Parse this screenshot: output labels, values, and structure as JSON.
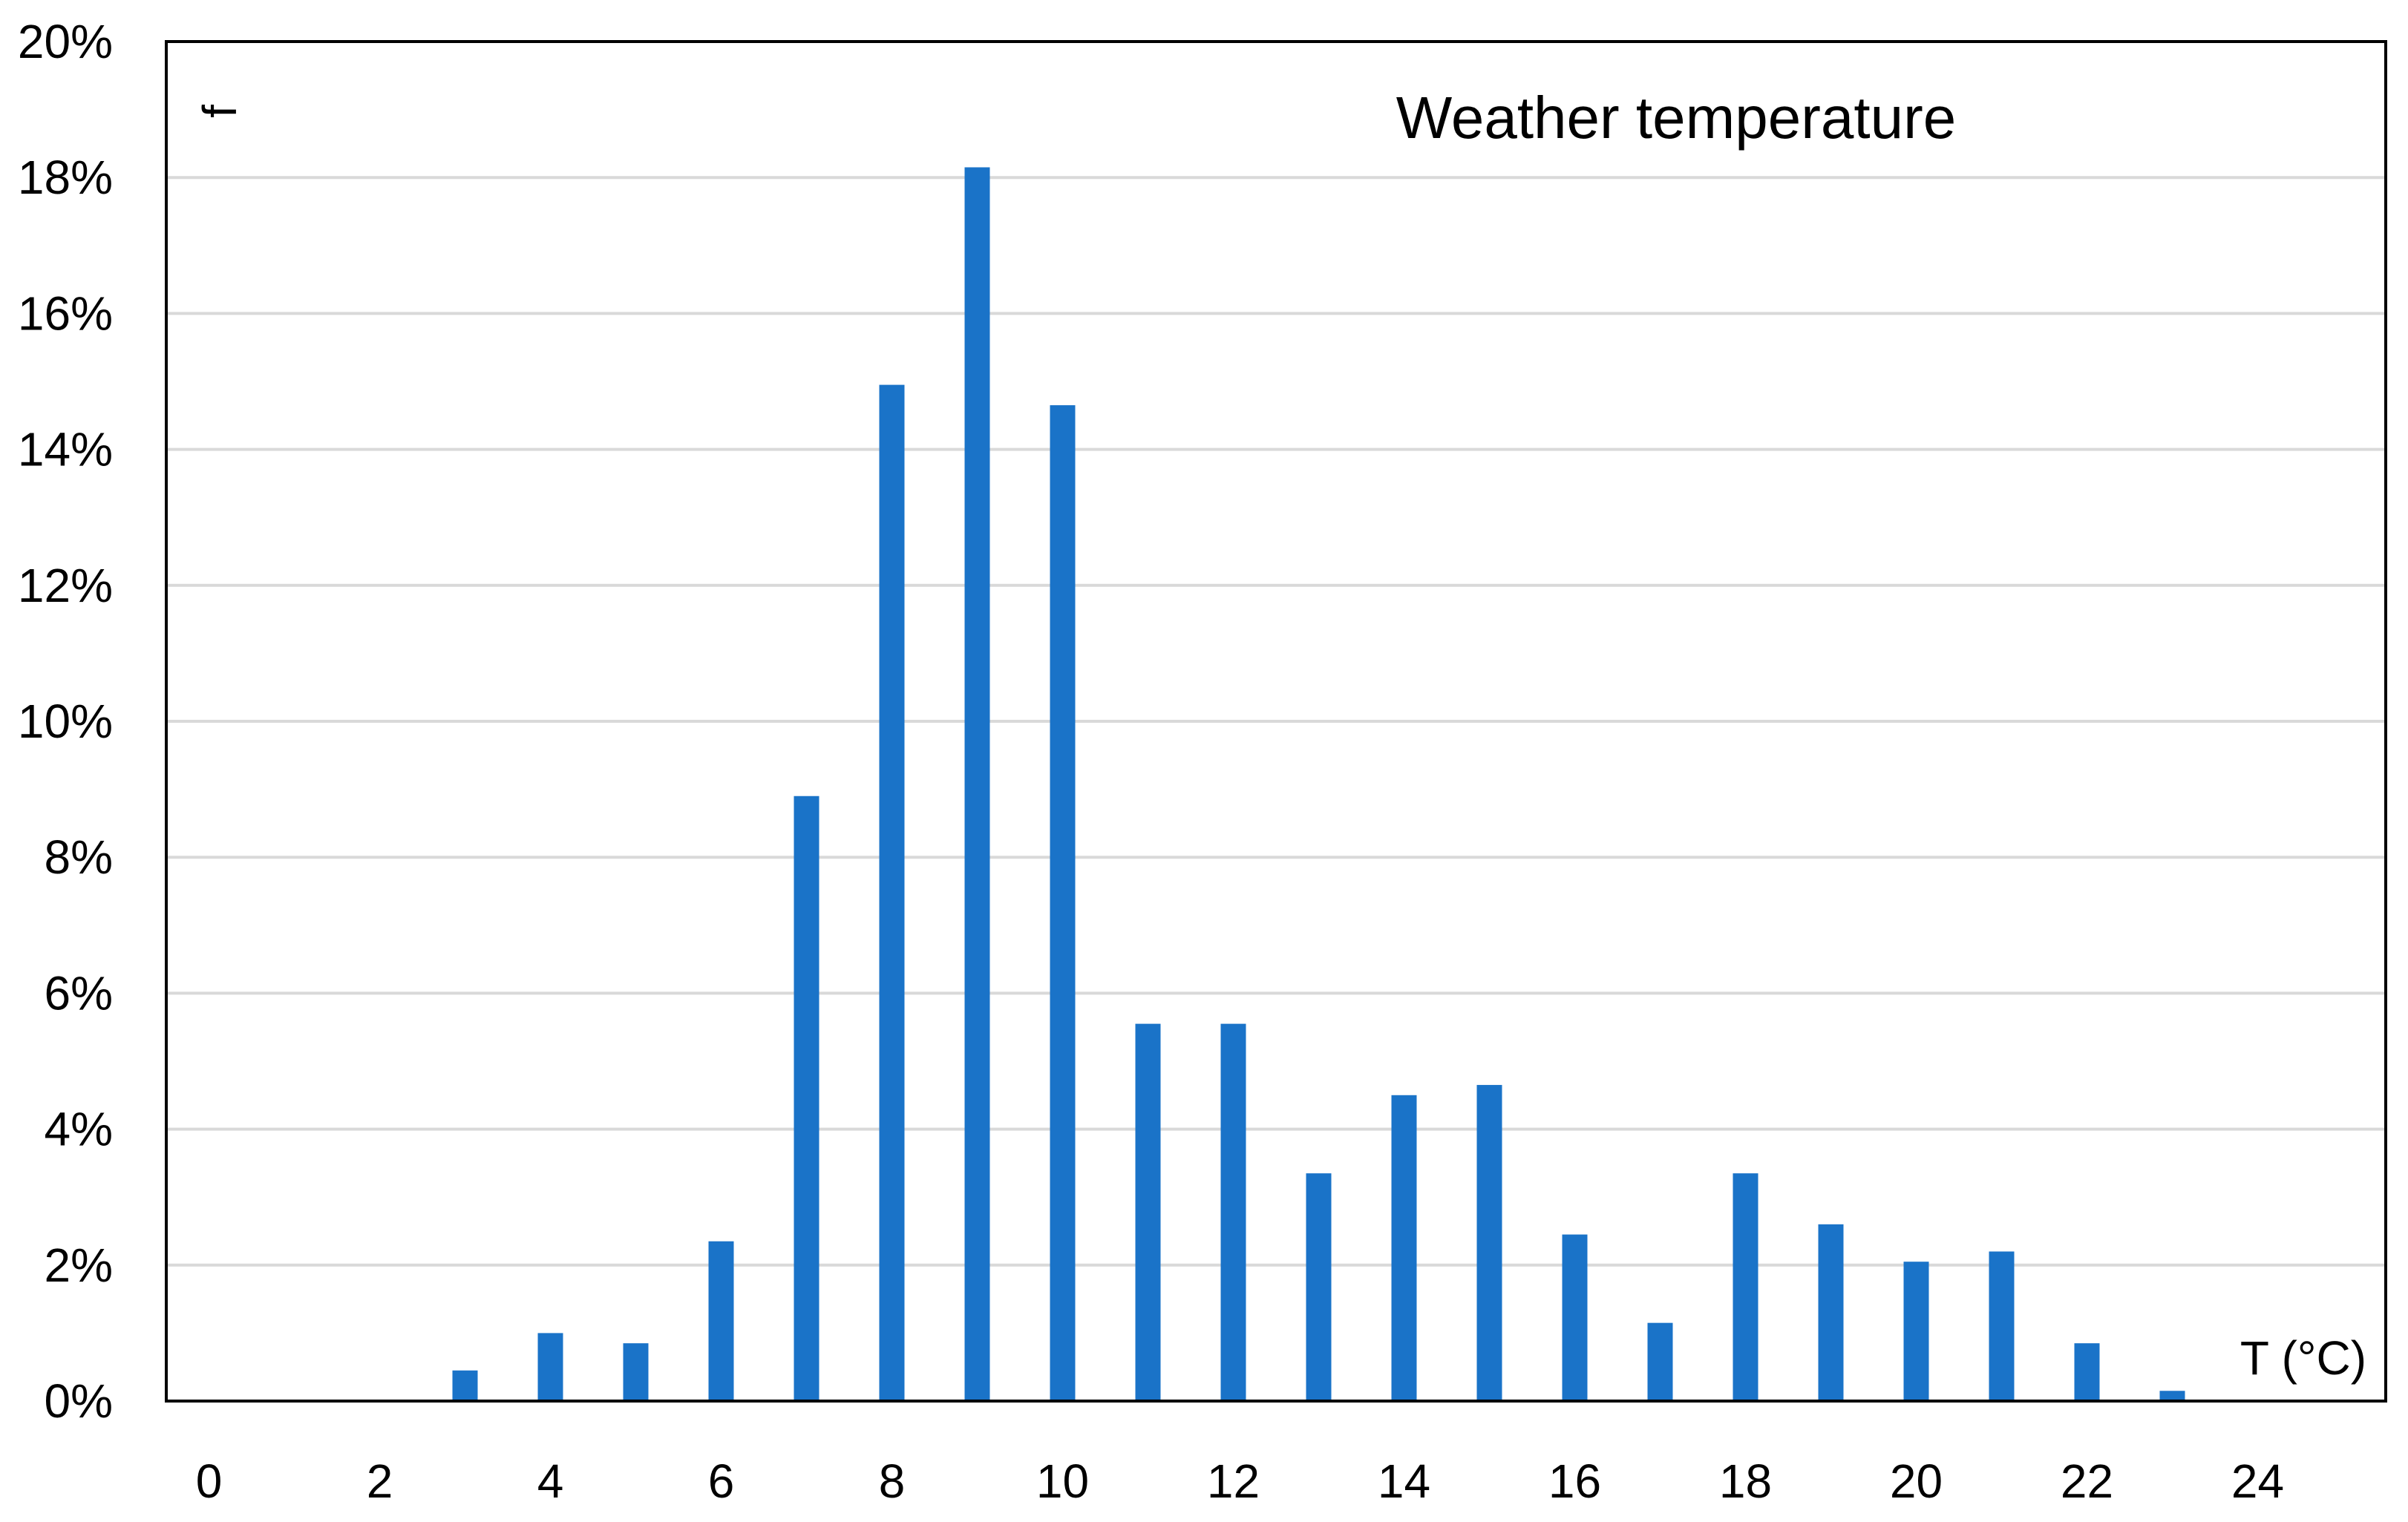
{
  "chart_data": {
    "type": "bar",
    "title": "Weather temperature",
    "xlabel": "T (°C)",
    "ylabel": "f",
    "x": [
      0,
      1,
      2,
      3,
      4,
      5,
      6,
      7,
      8,
      9,
      10,
      11,
      12,
      13,
      14,
      15,
      16,
      17,
      18,
      19,
      20,
      21,
      22,
      23,
      24
    ],
    "values": [
      0,
      0,
      0,
      0.45,
      1.0,
      0.85,
      2.35,
      8.9,
      14.95,
      18.15,
      14.65,
      5.55,
      5.55,
      3.35,
      4.5,
      4.65,
      2.45,
      1.15,
      3.35,
      2.6,
      2.05,
      2.2,
      0.85,
      0.15,
      0
    ],
    "xlim": [
      -0.5,
      25.5
    ],
    "ylim": [
      0,
      20
    ],
    "x_ticks": [
      0,
      2,
      4,
      6,
      8,
      10,
      12,
      14,
      16,
      18,
      20,
      22,
      24
    ],
    "x_tick_labels": [
      "0",
      "2",
      "4",
      "6",
      "8",
      "10",
      "12",
      "14",
      "16",
      "18",
      "20",
      "22",
      "24"
    ],
    "y_ticks": [
      0,
      2,
      4,
      6,
      8,
      10,
      12,
      14,
      16,
      18,
      20
    ],
    "y_tick_labels": [
      "0%",
      "2%",
      "4%",
      "6%",
      "8%",
      "10%",
      "12%",
      "14%",
      "16%",
      "18%",
      "20%"
    ],
    "grid": true,
    "bar_color": "#1a73c8",
    "grid_color": "#d9d9d9",
    "axis_color": "#000000"
  }
}
